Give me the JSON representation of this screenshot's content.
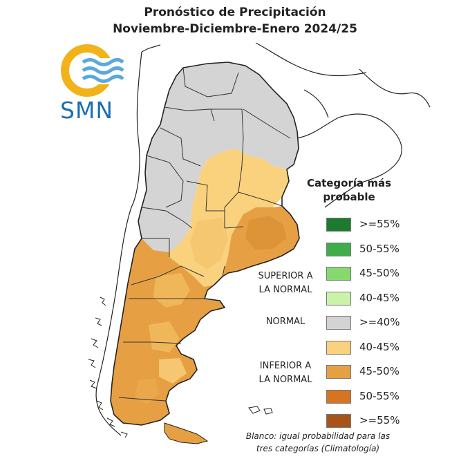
{
  "title_line1": "Pronóstico de Precipitación",
  "title_line2": "Noviembre-Diciembre-Enero 2024/25",
  "logo_text": "SMN",
  "legend": {
    "title_line1": "Categoría más",
    "title_line2": "probable",
    "items": [
      {
        "label": ">=55%",
        "color": "#1e7a2e"
      },
      {
        "label": "50-55%",
        "color": "#3fae4a"
      },
      {
        "label": "45-50%",
        "color": "#86d96e"
      },
      {
        "label": "40-45%",
        "color": "#caf2a8"
      },
      {
        "label": ">=40%",
        "color": "#d3d3d3"
      },
      {
        "label": "40-45%",
        "color": "#fad27e"
      },
      {
        "label": "45-50%",
        "color": "#e6a043"
      },
      {
        "label": "50-55%",
        "color": "#d8731f"
      },
      {
        "label": ">=55%",
        "color": "#a8531a"
      }
    ],
    "groups": {
      "superior_line1": "SUPERIOR A",
      "superior_line2": "LA NORMAL",
      "normal": "NORMAL",
      "inferior_line1": "INFERIOR A",
      "inferior_line2": "LA NORMAL"
    }
  },
  "note_line1": "Blanco: igual probabilidad para las",
  "note_line2": "tres categorías (Climatología)"
}
